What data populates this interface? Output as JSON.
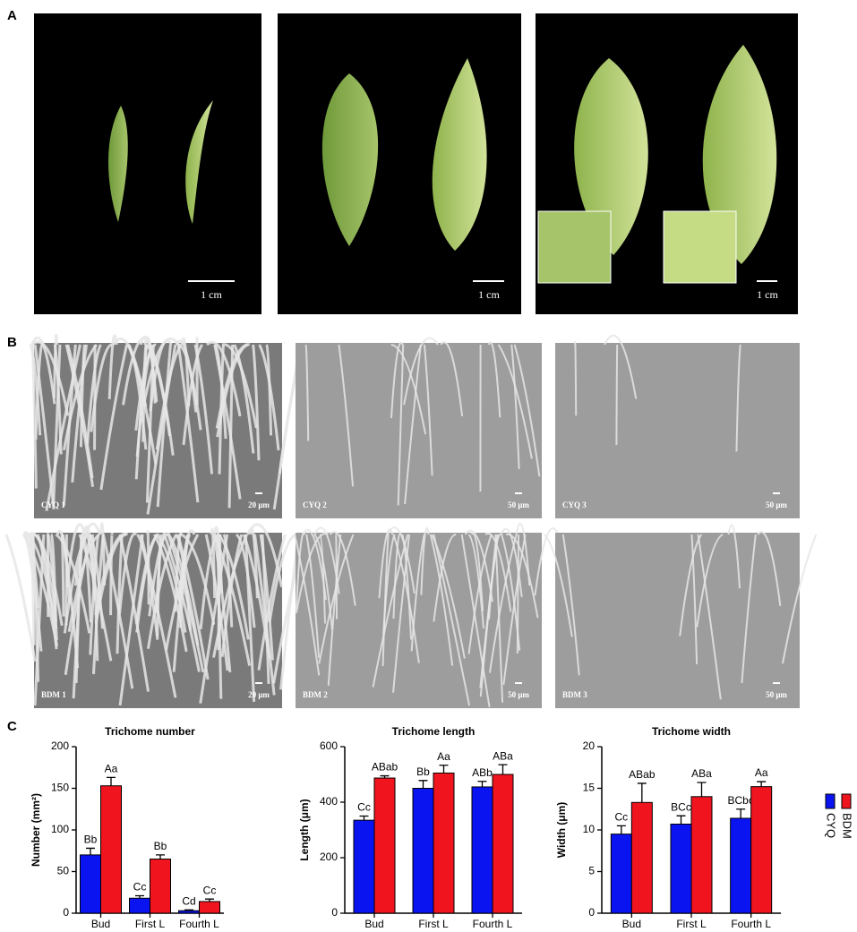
{
  "figure": {
    "panel_labels": [
      "A",
      "B",
      "C"
    ],
    "photos": [
      {
        "scale": "1 cm"
      },
      {
        "scale": "1 cm"
      },
      {
        "scale": "1 cm"
      }
    ],
    "sem": [
      {
        "label": "CYQ 1",
        "scale": "20 μm"
      },
      {
        "label": "CYQ 2",
        "scale": "50 μm"
      },
      {
        "label": "CYQ 3",
        "scale": "50 μm"
      },
      {
        "label": "BDM 1",
        "scale": "20 μm"
      },
      {
        "label": "BDM 2",
        "scale": "50 μm"
      },
      {
        "label": "BDM 3",
        "scale": "50 μm"
      }
    ]
  },
  "chart_data": [
    {
      "type": "bar",
      "title": "Trichome number",
      "y_label": "Number (mm²)",
      "categories": [
        "Bud",
        "First L",
        "Fourth L"
      ],
      "ylim": [
        0,
        200
      ],
      "yticks": [
        0,
        50,
        100,
        150,
        200
      ],
      "series": [
        {
          "name": "CYQ",
          "color": "#0a14f0",
          "values": [
            70,
            18,
            3
          ],
          "error": [
            8,
            3,
            1
          ],
          "value_labels": [
            "Bb",
            "Cc",
            "Cd"
          ]
        },
        {
          "name": "BDM",
          "color": "#f0141e",
          "values": [
            153,
            65,
            14
          ],
          "error": [
            10,
            5,
            3
          ],
          "value_labels": [
            "Aa",
            "Bb",
            "Cc"
          ]
        }
      ]
    },
    {
      "type": "bar",
      "title": "Trichome length",
      "y_label": "Length (μm)",
      "categories": [
        "Bud",
        "First L",
        "Fourth L"
      ],
      "ylim": [
        0,
        600
      ],
      "yticks": [
        0,
        200,
        400,
        600
      ],
      "series": [
        {
          "color": "#0a14f0",
          "values": [
            335,
            450,
            455
          ],
          "error": [
            15,
            28,
            20
          ],
          "value_labels": [
            "Cc",
            "Bb",
            "ABb"
          ]
        },
        {
          "color": "#f0141e",
          "values": [
            487,
            505,
            500
          ],
          "error": [
            8,
            28,
            35
          ],
          "value_labels": [
            "ABab",
            "Aa",
            "ABa"
          ]
        }
      ]
    },
    {
      "type": "bar",
      "title": "Trichome width",
      "y_label": "Width (μm)",
      "categories": [
        "Bud",
        "First L",
        "Fourth L"
      ],
      "ylim": [
        0,
        20
      ],
      "yticks": [
        0,
        5,
        10,
        15,
        20
      ],
      "series": [
        {
          "color": "#0a14f0",
          "values": [
            9.5,
            10.7,
            11.4
          ],
          "error": [
            1,
            1,
            1.1
          ],
          "value_labels": [
            "Cc",
            "BCc",
            "BCbc"
          ]
        },
        {
          "color": "#f0141e",
          "values": [
            13.3,
            14.0,
            15.2
          ],
          "error": [
            2.3,
            1.7,
            0.6
          ],
          "value_labels": [
            "ABab",
            "ABa",
            "Aa"
          ]
        }
      ]
    }
  ]
}
